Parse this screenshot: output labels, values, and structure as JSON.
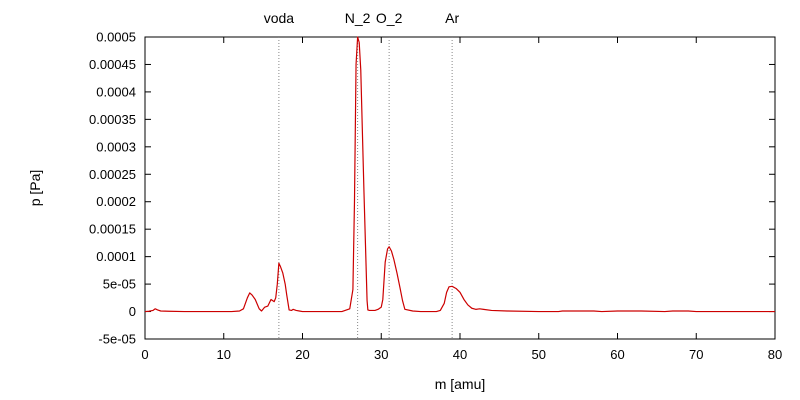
{
  "chart_data": {
    "type": "line",
    "xlabel": "m [amu]",
    "ylabel": "p [Pa]",
    "xlim": [
      0,
      80
    ],
    "ylim": [
      -5e-05,
      0.0005
    ],
    "x_ticks": [
      0,
      10,
      20,
      30,
      40,
      50,
      60,
      70,
      80
    ],
    "x_tick_labels": [
      "0",
      "10",
      "20",
      "30",
      "40",
      "50",
      "60",
      "70",
      "80"
    ],
    "y_ticks": [
      -5e-05,
      0,
      5e-05,
      0.0001,
      0.00015,
      0.0002,
      0.00025,
      0.0003,
      0.00035,
      0.0004,
      0.00045,
      0.0005
    ],
    "y_tick_labels": [
      "-5e-05",
      "0",
      "5e-05",
      "0.0001",
      "0.00015",
      "0.0002",
      "0.00025",
      "0.0003",
      "0.00035",
      "0.0004",
      "0.00045",
      "0.0005"
    ],
    "grid": false,
    "markers": [
      {
        "label": "voda",
        "x": 17
      },
      {
        "label": "N_2",
        "x": 27
      },
      {
        "label": "O_2",
        "x": 31
      },
      {
        "label": "Ar",
        "x": 39
      }
    ],
    "series_color": "#cc0000",
    "series": [
      {
        "x": [
          0,
          0.5,
          1,
          1.3,
          1.6,
          2,
          3,
          5,
          8,
          11,
          12,
          12.5,
          13,
          13.3,
          13.6,
          14,
          14.5,
          14.8,
          15.2,
          15.6,
          16,
          16.4,
          16.6,
          16.8,
          17,
          17.2,
          17.5,
          17.8,
          18,
          18.3,
          18.6,
          18.8,
          19.2,
          19.6,
          20,
          21,
          23,
          25,
          26,
          26.4,
          26.6,
          26.8,
          27,
          27.2,
          27.4,
          27.6,
          27.8,
          28,
          28.2,
          28.3,
          28.5,
          28.8,
          29.2,
          29.6,
          30,
          30.2,
          30.5,
          30.8,
          31,
          31.3,
          31.6,
          32,
          32.4,
          32.7,
          33,
          34,
          35,
          37,
          37.5,
          38,
          38.3,
          38.6,
          39,
          39.5,
          40,
          40.5,
          41,
          41.5,
          42,
          42.5,
          43,
          44,
          46,
          50,
          52.5,
          53,
          57,
          58,
          60,
          63,
          66,
          67,
          69,
          70,
          75,
          80
        ],
        "y": [
          0,
          5e-07,
          2e-06,
          5e-06,
          3e-06,
          1e-06,
          5e-07,
          0,
          0,
          0,
          1e-06,
          5e-06,
          2.5e-05,
          3.4e-05,
          3e-05,
          2.2e-05,
          5e-06,
          1e-06,
          8e-06,
          1e-05,
          2.2e-05,
          1.8e-05,
          2.5e-05,
          5e-05,
          8.8e-05,
          8.2e-05,
          7e-05,
          5e-05,
          3e-05,
          3e-06,
          2e-06,
          4e-06,
          2e-06,
          1e-06,
          0,
          0,
          0,
          0,
          5e-06,
          4e-05,
          0.0002,
          0.00045,
          0.0005,
          0.00049,
          0.00044,
          0.00033,
          0.00022,
          0.00012,
          2e-05,
          3e-06,
          2e-06,
          2e-06,
          2e-06,
          4e-06,
          8e-06,
          2.2e-05,
          9e-05,
          0.000114,
          0.000118,
          0.00011,
          9.5e-05,
          7e-05,
          4.2e-05,
          2e-05,
          4e-06,
          1e-06,
          0,
          0,
          2e-06,
          1.5e-05,
          3.5e-05,
          4.5e-05,
          4.6e-05,
          4.2e-05,
          3.5e-05,
          2.2e-05,
          1.2e-05,
          6e-06,
          4e-06,
          5e-06,
          4e-06,
          2e-06,
          1e-06,
          0,
          0,
          1e-06,
          1e-06,
          0,
          1e-06,
          1e-06,
          0,
          1e-06,
          1e-06,
          0,
          0,
          0
        ]
      }
    ]
  }
}
